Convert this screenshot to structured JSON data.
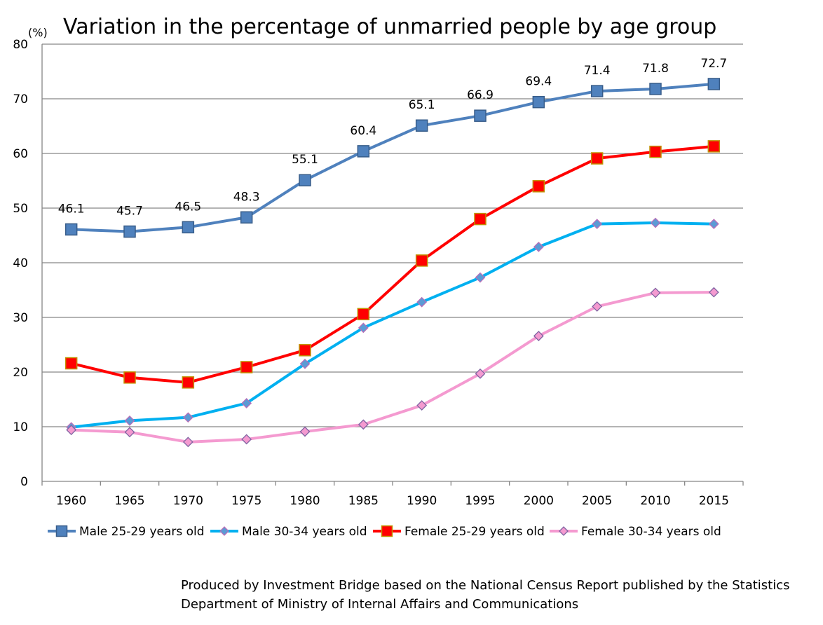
{
  "chart_data": {
    "type": "line",
    "title": "Variation in the percentage of unmarried people by age group",
    "unit_label": "(%)",
    "xlabel": "",
    "ylabel": "",
    "ylim": [
      0,
      80
    ],
    "yticks": [
      "0",
      "10",
      "20",
      "30",
      "40",
      "50",
      "60",
      "70",
      "80"
    ],
    "categories": [
      "1960",
      "1965",
      "1970",
      "1975",
      "1980",
      "1985",
      "1990",
      "1995",
      "2000",
      "2005",
      "2010",
      "2015"
    ],
    "grid": "horizontal",
    "legend_position": "bottom",
    "series": [
      {
        "name": "Male 25-29 years old",
        "color": "#4f81bd",
        "marker": "square",
        "values": [
          46.1,
          45.7,
          46.5,
          48.3,
          55.1,
          60.4,
          65.1,
          66.9,
          69.4,
          71.4,
          71.8,
          72.7
        ],
        "labels": [
          "46.1",
          "45.7",
          "46.5",
          "48.3",
          "55.1",
          "60.4",
          "65.1",
          "66.9",
          "69.4",
          "71.4",
          "71.8",
          "72.7"
        ]
      },
      {
        "name": "Male 30-34 years old",
        "color": "#00b0f0",
        "marker_fill": "#5b9bd5",
        "marker_edge": "#b86fb8",
        "marker": "diamond",
        "values": [
          9.9,
          11.1,
          11.7,
          14.3,
          21.5,
          28.1,
          32.8,
          37.3,
          42.9,
          47.1,
          47.3,
          47.1
        ]
      },
      {
        "name": "Female 25-29 years old",
        "color": "#ff0000",
        "marker_edge": "#c09000",
        "marker": "square",
        "values": [
          21.6,
          19.0,
          18.1,
          20.9,
          24.0,
          30.6,
          40.4,
          48.0,
          54.0,
          59.1,
          60.3,
          61.3
        ]
      },
      {
        "name": "Female 30-34 years old",
        "color": "#f49ad0",
        "marker_fill": "#f49ad0",
        "marker_edge": "#8064a2",
        "marker": "diamond",
        "values": [
          9.4,
          9.0,
          7.2,
          7.7,
          9.1,
          10.4,
          13.9,
          19.7,
          26.6,
          32.0,
          34.5,
          34.6
        ]
      }
    ]
  },
  "source_note": {
    "line1": "Produced by Investment Bridge  based on the National Census Report published by the Statistics",
    "line2": "Department of Ministry of Internal Affairs and Communications"
  }
}
